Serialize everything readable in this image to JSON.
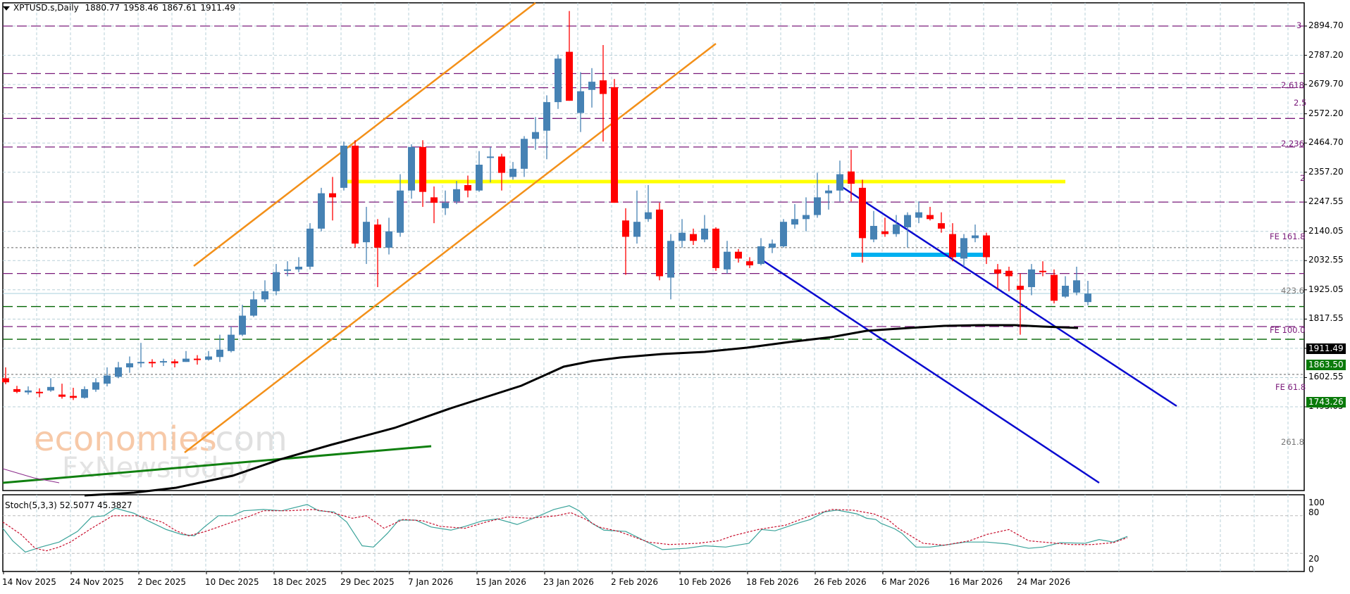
{
  "header": {
    "symbol": "XPTUSD.s,Daily",
    "open": "1880.77",
    "high": "1958.46",
    "low": "1867.61",
    "close": "1911.49"
  },
  "stoch": {
    "label": "Stoch(5,3,3)",
    "main": "52.5077",
    "signal": "45.3827",
    "axis": [
      "100",
      "80",
      "20",
      "0"
    ]
  },
  "price_axis": [
    "2894.70",
    "2787.20",
    "2679.70",
    "2572.20",
    "2464.70",
    "2357.20",
    "2247.55",
    "2140.05",
    "2032.55",
    "1925.05",
    "1817.55",
    "1710.05",
    "1602.55",
    "1495.05"
  ],
  "price_tags": {
    "current": "1911.49",
    "upper_green": "1863.50",
    "lower_green": "1743.26"
  },
  "fib_labels": {
    "f3": "3",
    "f2618": "2.618",
    "f25": "2.5",
    "f2236": "2.236",
    "f2": "2",
    "fe1618": "FE 161.8",
    "r4236": "423.6",
    "fe100": "FE 100.0",
    "fe618": "FE 61.8",
    "r2618": "261.8"
  },
  "date_axis": [
    "14 Nov 2025",
    "24 Nov 2025",
    "2 Dec 2025",
    "10 Dec 2025",
    "18 Dec 2025",
    "29 Dec 2025",
    "7 Jan 2026",
    "15 Jan 2026",
    "23 Jan 2026",
    "2 Feb 2026",
    "10 Feb 2026",
    "18 Feb 2026",
    "26 Feb 2026",
    "6 Mar 2026",
    "16 Mar 2026",
    "24 Mar 2026"
  ],
  "watermark": {
    "line1a": "economies",
    "line1b": ".com",
    "line2": "FxNewsToday"
  },
  "colors": {
    "bull": "#4682b4",
    "bear": "#ff0000",
    "fib": "#7a1a7a",
    "green_level": "#006400",
    "grid": "#b8d0d8",
    "orange_channel": "#f39019",
    "blue_channel": "#0a0ad0",
    "yellow_level": "#ffff00",
    "cyan_level": "#00b0f0",
    "ma": "#000000",
    "stoch_main": "#3aa39a",
    "stoch_signal": "#c8102e"
  },
  "chart_data": {
    "type": "candlestick",
    "title": "XPTUSD.s, Daily",
    "ohlc_last": {
      "open": 1880.77,
      "high": 1958.46,
      "low": 1867.61,
      "close": 1911.49
    },
    "ylim": [
      1495.05,
      2940
    ],
    "yticks": [
      2894.7,
      2787.2,
      2679.7,
      2572.2,
      2464.7,
      2357.2,
      2247.55,
      2140.05,
      2032.55,
      1925.05,
      1817.55,
      1710.05,
      1602.55,
      1495.05
    ],
    "xticks": [
      "14 Nov 2025",
      "24 Nov 2025",
      "2 Dec 2025",
      "10 Dec 2025",
      "18 Dec 2025",
      "29 Dec 2025",
      "7 Jan 2026",
      "15 Jan 2026",
      "23 Jan 2026",
      "2 Feb 2026",
      "10 Feb 2026",
      "18 Feb 2026",
      "26 Feb 2026",
      "6 Mar 2026",
      "16 Mar 2026",
      "24 Mar 2026"
    ],
    "candles": [
      [
        1600,
        1585,
        1640,
        1578
      ],
      [
        1560,
        1550,
        1572,
        1545
      ],
      [
        1548,
        1555,
        1570,
        1540
      ],
      [
        1550,
        1545,
        1563,
        1530
      ],
      [
        1555,
        1568,
        1600,
        1550
      ],
      [
        1540,
        1532,
        1580,
        1525
      ],
      [
        1535,
        1528,
        1565,
        1520
      ],
      [
        1528,
        1560,
        1570,
        1525
      ],
      [
        1558,
        1585,
        1600,
        1550
      ],
      [
        1580,
        1610,
        1640,
        1570
      ],
      [
        1605,
        1640,
        1660,
        1600
      ],
      [
        1640,
        1655,
        1680,
        1620
      ],
      [
        1655,
        1660,
        1730,
        1640
      ],
      [
        1660,
        1655,
        1670,
        1640
      ],
      [
        1658,
        1663,
        1672,
        1645
      ],
      [
        1662,
        1655,
        1670,
        1640
      ],
      [
        1660,
        1672,
        1700,
        1660
      ],
      [
        1672,
        1668,
        1685,
        1650
      ],
      [
        1668,
        1680,
        1700,
        1665
      ],
      [
        1678,
        1705,
        1760,
        1660
      ],
      [
        1700,
        1760,
        1790,
        1695
      ],
      [
        1760,
        1830,
        1870,
        1755
      ],
      [
        1830,
        1890,
        1920,
        1825
      ],
      [
        1890,
        1920,
        1960,
        1880
      ],
      [
        1920,
        1990,
        2020,
        1905
      ],
      [
        1995,
        2000,
        2030,
        1975
      ],
      [
        2000,
        2010,
        2045,
        1990
      ],
      [
        2010,
        2150,
        2170,
        2000
      ],
      [
        2150,
        2280,
        2300,
        2140
      ],
      [
        2280,
        2265,
        2340,
        2180
      ],
      [
        2300,
        2455,
        2470,
        2290
      ],
      [
        2455,
        2095,
        2475,
        2080
      ],
      [
        2100,
        2175,
        2230,
        2020
      ],
      [
        2165,
        2080,
        2185,
        1935
      ],
      [
        2080,
        2140,
        2190,
        2055
      ],
      [
        2135,
        2290,
        2350,
        2120
      ],
      [
        2290,
        2450,
        2460,
        2260
      ],
      [
        2450,
        2285,
        2475,
        2230
      ],
      [
        2265,
        2245,
        2305,
        2170
      ],
      [
        2225,
        2245,
        2290,
        2200
      ],
      [
        2250,
        2295,
        2325,
        2240
      ],
      [
        2310,
        2290,
        2345,
        2265
      ],
      [
        2290,
        2385,
        2435,
        2285
      ],
      [
        2410,
        2415,
        2450,
        2320
      ],
      [
        2415,
        2355,
        2425,
        2290
      ],
      [
        2340,
        2370,
        2395,
        2330
      ],
      [
        2370,
        2480,
        2490,
        2340
      ],
      [
        2480,
        2505,
        2560,
        2440
      ],
      [
        2510,
        2615,
        2640,
        2405
      ],
      [
        2615,
        2775,
        2790,
        2590
      ],
      [
        2800,
        2620,
        2950,
        2620
      ],
      [
        2575,
        2655,
        2725,
        2505
      ],
      [
        2660,
        2690,
        2740,
        2595
      ],
      [
        2695,
        2645,
        2825,
        2470
      ],
      [
        2670,
        2245,
        2700,
        2245
      ],
      [
        2180,
        2120,
        2225,
        1980
      ],
      [
        2120,
        2175,
        2290,
        2095
      ],
      [
        2185,
        2210,
        2310,
        2175
      ],
      [
        2220,
        1975,
        2245,
        1960
      ],
      [
        1970,
        2105,
        2130,
        1890
      ],
      [
        2105,
        2135,
        2185,
        2080
      ],
      [
        2130,
        2105,
        2150,
        2090
      ],
      [
        2110,
        2150,
        2200,
        2100
      ],
      [
        2150,
        2005,
        2155,
        1995
      ],
      [
        2000,
        2065,
        2105,
        1985
      ],
      [
        2065,
        2040,
        2075,
        2025
      ],
      [
        2030,
        2015,
        2045,
        2005
      ],
      [
        2020,
        2085,
        2115,
        2015
      ],
      [
        2080,
        2095,
        2110,
        2060
      ],
      [
        2085,
        2175,
        2185,
        2080
      ],
      [
        2165,
        2185,
        2240,
        2150
      ],
      [
        2185,
        2200,
        2265,
        2140
      ],
      [
        2200,
        2265,
        2355,
        2190
      ],
      [
        2280,
        2290,
        2310,
        2220
      ],
      [
        2290,
        2350,
        2400,
        2250
      ],
      [
        2360,
        2315,
        2440,
        2250
      ],
      [
        2300,
        2115,
        2330,
        2025
      ],
      [
        2110,
        2160,
        2215,
        2100
      ],
      [
        2140,
        2130,
        2190,
        2120
      ],
      [
        2130,
        2165,
        2200,
        2120
      ],
      [
        2155,
        2200,
        2210,
        2080
      ],
      [
        2190,
        2210,
        2250,
        2170
      ],
      [
        2200,
        2185,
        2230,
        2180
      ],
      [
        2170,
        2150,
        2210,
        2135
      ],
      [
        2130,
        2045,
        2170,
        2030
      ],
      [
        2040,
        2115,
        2130,
        2010
      ],
      [
        2115,
        2125,
        2165,
        2100
      ],
      [
        2125,
        2045,
        2135,
        2020
      ],
      [
        2000,
        1985,
        2020,
        1930
      ],
      [
        1995,
        1975,
        2010,
        1920
      ],
      [
        1940,
        1925,
        1985,
        1760
      ],
      [
        1935,
        2000,
        2020,
        1905
      ],
      [
        1995,
        1990,
        2030,
        1975
      ],
      [
        1980,
        1885,
        2000,
        1875
      ],
      [
        1900,
        1940,
        1975,
        1895
      ],
      [
        1915,
        1960,
        2010,
        1905
      ],
      [
        1880,
        1911,
        1958,
        1868
      ]
    ],
    "moving_average": {
      "name": "MA (black)",
      "points": [
        [
          0,
          1500
        ],
        [
          20,
          1510
        ],
        [
          26,
          1540
        ],
        [
          30,
          1610
        ],
        [
          40,
          1780
        ],
        [
          48,
          1880
        ],
        [
          55,
          1935
        ],
        [
          65,
          1970
        ],
        [
          75,
          2000
        ],
        [
          84,
          2020
        ],
        [
          90,
          2020
        ],
        [
          96,
          2010
        ]
      ]
    },
    "horizontal_levels": [
      {
        "label": "3",
        "value": 2894.7,
        "style": "fib"
      },
      {
        "label": "2.618",
        "value": 2720,
        "style": "fib"
      },
      {
        "label": "2.5",
        "value": 2668,
        "style": "fib"
      },
      {
        "label": "2.236",
        "value": 2555,
        "style": "fib"
      },
      {
        "label": "2",
        "value": 2450,
        "style": "fib"
      },
      {
        "label": "FE 161.8",
        "value": 2247.55,
        "style": "fib"
      },
      {
        "label": "423.6",
        "value": 2080,
        "style": "dotted"
      },
      {
        "label": "FE 100.0",
        "value": 1985,
        "style": "fib"
      },
      {
        "label": "1863.50",
        "value": 1863.5,
        "style": "green"
      },
      {
        "label": "FE 61.8",
        "value": 1790,
        "style": "fib"
      },
      {
        "label": "1743.26",
        "value": 1743.26,
        "style": "green"
      },
      {
        "label": "261.8",
        "value": 1614,
        "style": "dotted"
      }
    ],
    "stochastic": {
      "params": "5,3,3",
      "main": 52.5077,
      "signal": 45.3827,
      "levels": [
        80,
        20
      ],
      "ylim": [
        0,
        100
      ]
    }
  }
}
